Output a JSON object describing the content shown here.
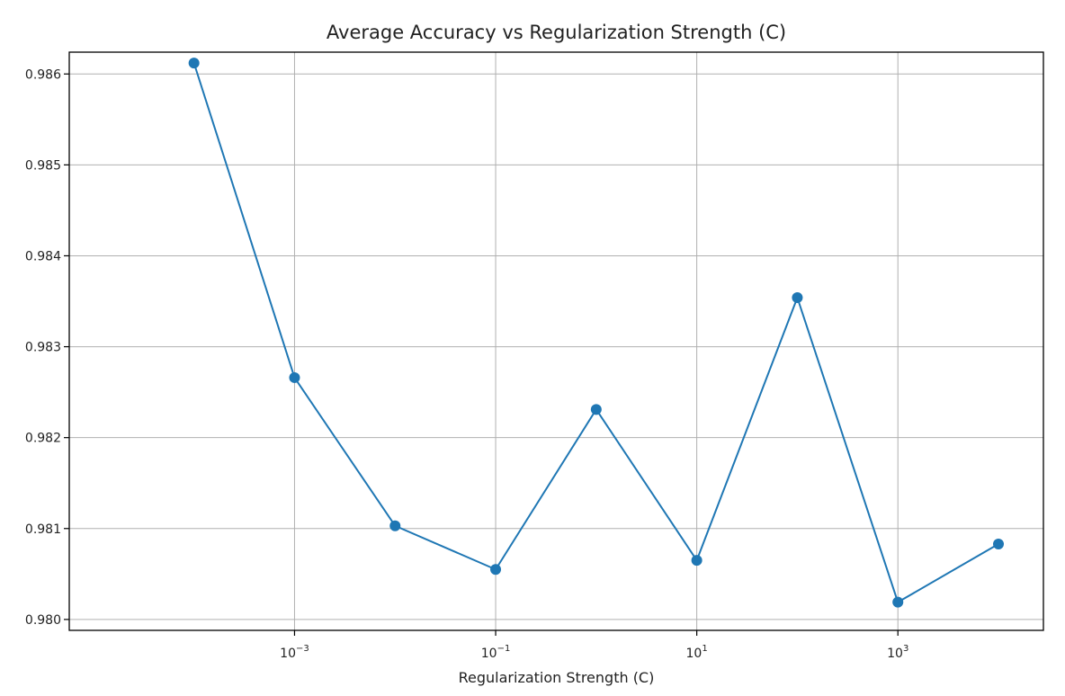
{
  "chart_data": {
    "type": "line",
    "title": "Average Accuracy vs Regularization Strength (C)",
    "xlabel": "Regularization Strength (C)",
    "ylabel": "",
    "x_scale": "log",
    "grid": true,
    "xlim": [
      5.75e-06,
      28000
    ],
    "ylim": [
      0.97988,
      0.98624
    ],
    "x_ticks": [
      {
        "value": 0.001,
        "base": "10",
        "exp": "−3"
      },
      {
        "value": 0.1,
        "base": "10",
        "exp": "−1"
      },
      {
        "value": 10,
        "base": "10",
        "exp": "1"
      },
      {
        "value": 1000,
        "base": "10",
        "exp": "3"
      }
    ],
    "y_ticks": [
      {
        "value": 0.98,
        "label": "0.980"
      },
      {
        "value": 0.981,
        "label": "0.981"
      },
      {
        "value": 0.982,
        "label": "0.982"
      },
      {
        "value": 0.983,
        "label": "0.983"
      },
      {
        "value": 0.984,
        "label": "0.984"
      },
      {
        "value": 0.985,
        "label": "0.985"
      },
      {
        "value": 0.986,
        "label": "0.986"
      }
    ],
    "series": [
      {
        "color": "#1f77b4",
        "marker": "circle",
        "x": [
          0.0001,
          0.001,
          0.01,
          0.1,
          1,
          10,
          100,
          1000,
          10000
        ],
        "y": [
          0.98612,
          0.98266,
          0.98103,
          0.98055,
          0.98231,
          0.98065,
          0.98354,
          0.98019,
          0.98083
        ]
      }
    ]
  }
}
